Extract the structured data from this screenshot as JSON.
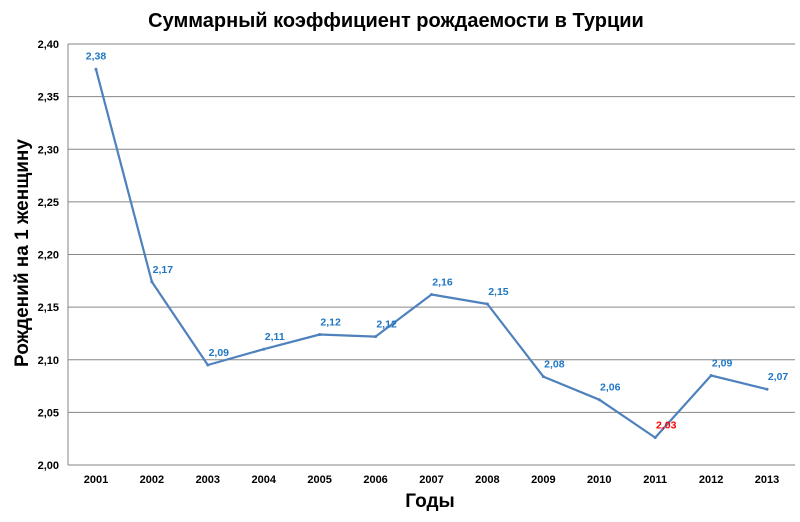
{
  "chart_data": {
    "type": "line",
    "title": "Суммарный коэффициент рождаемости в Турции",
    "xlabel": "Годы",
    "ylabel": "Рождений на 1 женщину",
    "ylim": [
      2.0,
      2.4
    ],
    "y_ticks": [
      "2,00",
      "2,05",
      "2,10",
      "2,15",
      "2,20",
      "2,25",
      "2,30",
      "2,35",
      "2,40"
    ],
    "grid": true,
    "legend": "none",
    "categories": [
      "2001",
      "2002",
      "2003",
      "2004",
      "2005",
      "2006",
      "2007",
      "2008",
      "2009",
      "2010",
      "2011",
      "2012",
      "2013"
    ],
    "series": [
      {
        "values": [
          2.376,
          2.174,
          2.095,
          2.11,
          2.124,
          2.122,
          2.162,
          2.153,
          2.084,
          2.062,
          2.026,
          2.085,
          2.072
        ],
        "data_labels": [
          "2,38",
          "2,17",
          "2,09",
          "2,11",
          "2,12",
          "2,12",
          "2,16",
          "2,15",
          "2,08",
          "2,06",
          "2,03",
          "2,09",
          "2,07"
        ],
        "color": "#4F81BD"
      }
    ],
    "label_color": "#1F77C4",
    "highlight_color": "#FF0000",
    "highlight_index": 10
  }
}
